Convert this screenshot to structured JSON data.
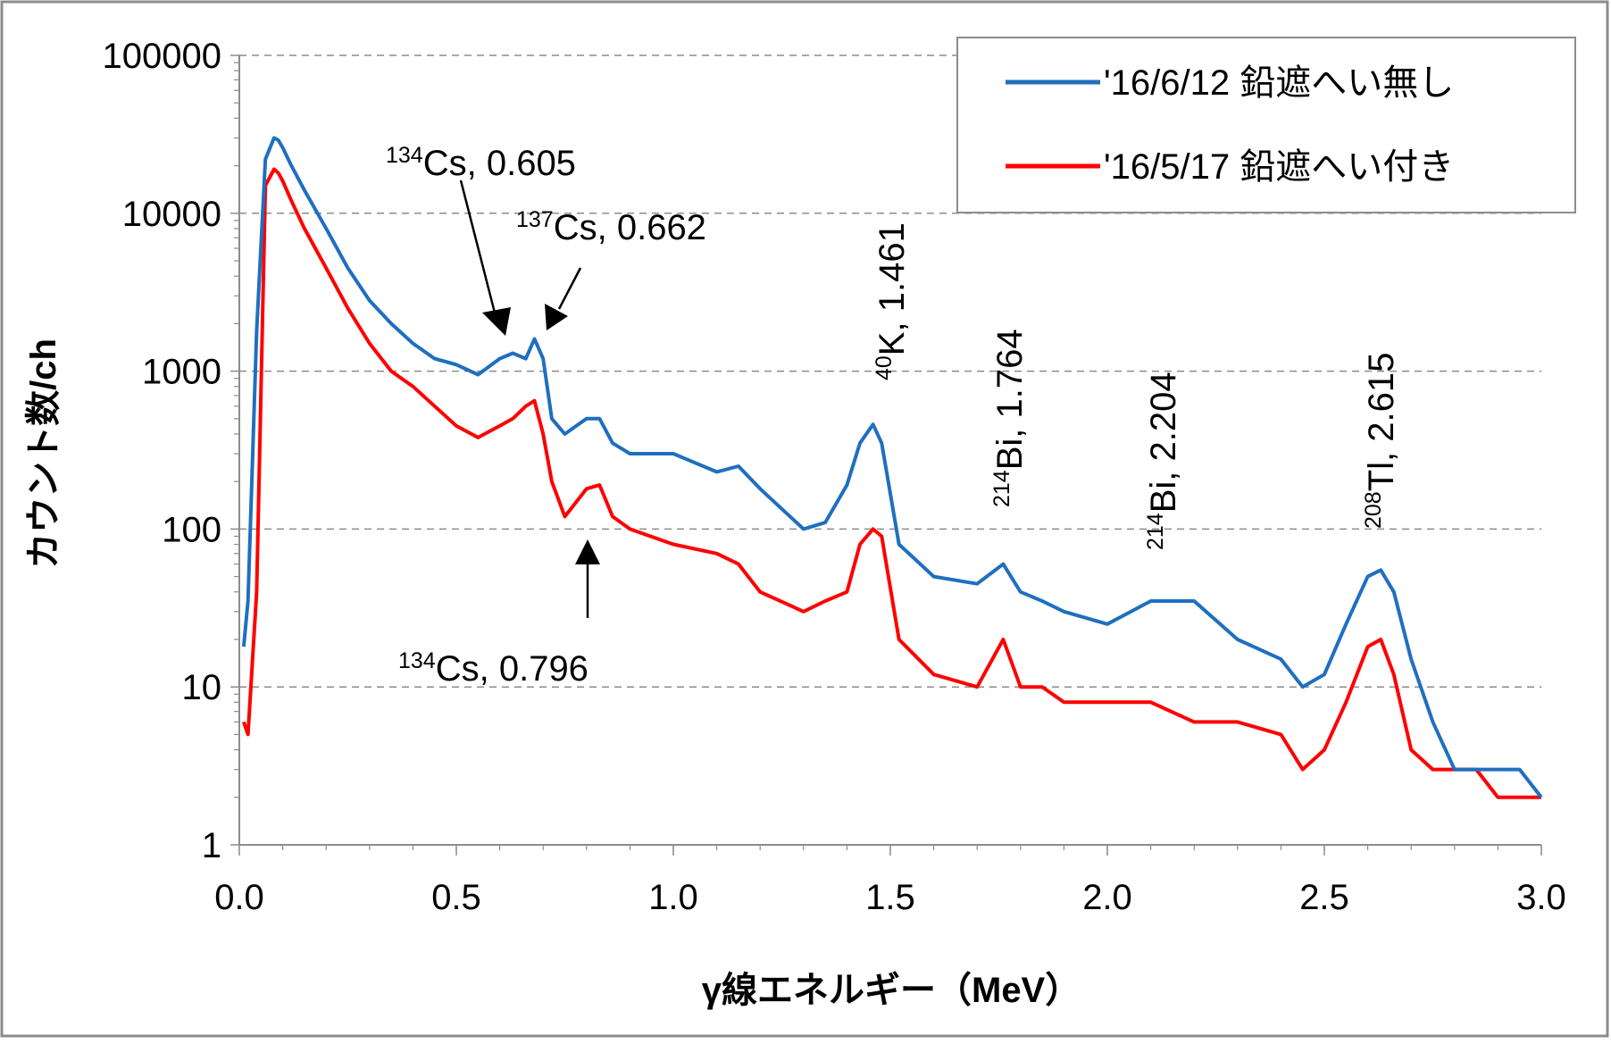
{
  "chart_data": {
    "type": "line",
    "title": "",
    "xlabel": "γ線エネルギー（MeV）",
    "ylabel": "カウント数/ch",
    "xlim": [
      0,
      3
    ],
    "ylim": [
      1,
      100000
    ],
    "yscale": "log",
    "grid": "horizontal dashed at decades",
    "legend_position": "top-right",
    "x_ticks": [
      "0.0",
      "0.5",
      "1.0",
      "1.5",
      "2.0",
      "2.5",
      "3.0"
    ],
    "y_ticks": [
      "1",
      "10",
      "100",
      "1000",
      "10000",
      "100000"
    ],
    "colors": {
      "series1": "#1f6fc0",
      "series2": "#ff0000"
    },
    "series": [
      {
        "name": "'16/6/12 鉛遮へい無し",
        "x": [
          0.01,
          0.02,
          0.04,
          0.06,
          0.08,
          0.09,
          0.1,
          0.12,
          0.15,
          0.2,
          0.25,
          0.3,
          0.35,
          0.4,
          0.45,
          0.5,
          0.55,
          0.6,
          0.63,
          0.66,
          0.68,
          0.7,
          0.72,
          0.75,
          0.8,
          0.83,
          0.86,
          0.9,
          1.0,
          1.1,
          1.15,
          1.2,
          1.3,
          1.35,
          1.4,
          1.43,
          1.46,
          1.48,
          1.52,
          1.6,
          1.7,
          1.76,
          1.8,
          1.85,
          1.9,
          2.0,
          2.1,
          2.2,
          2.3,
          2.4,
          2.45,
          2.5,
          2.55,
          2.6,
          2.63,
          2.66,
          2.7,
          2.75,
          2.8,
          2.85,
          2.9,
          2.95,
          3.0
        ],
        "y": [
          18,
          35,
          1800,
          22000,
          30000,
          29000,
          26000,
          20000,
          14000,
          8000,
          4500,
          2800,
          2000,
          1500,
          1200,
          1100,
          950,
          1200,
          1300,
          1200,
          1600,
          1200,
          500,
          400,
          500,
          500,
          350,
          300,
          300,
          230,
          250,
          180,
          100,
          110,
          190,
          350,
          460,
          350,
          80,
          50,
          45,
          60,
          40,
          35,
          30,
          25,
          35,
          35,
          20,
          15,
          10,
          12,
          25,
          50,
          55,
          40,
          15,
          6,
          3,
          3,
          3,
          3,
          2
        ]
      },
      {
        "name": "'16/5/17 鉛遮へい付き",
        "x": [
          0.01,
          0.02,
          0.04,
          0.06,
          0.08,
          0.09,
          0.1,
          0.12,
          0.15,
          0.2,
          0.25,
          0.3,
          0.35,
          0.4,
          0.45,
          0.5,
          0.55,
          0.6,
          0.63,
          0.66,
          0.68,
          0.7,
          0.72,
          0.75,
          0.8,
          0.83,
          0.86,
          0.9,
          1.0,
          1.1,
          1.15,
          1.2,
          1.3,
          1.35,
          1.4,
          1.43,
          1.46,
          1.48,
          1.52,
          1.6,
          1.7,
          1.76,
          1.8,
          1.85,
          1.9,
          2.0,
          2.1,
          2.2,
          2.3,
          2.4,
          2.45,
          2.5,
          2.55,
          2.6,
          2.63,
          2.66,
          2.7,
          2.75,
          2.8,
          2.85,
          2.9,
          2.95,
          3.0
        ],
        "y": [
          6,
          5,
          40,
          15000,
          19000,
          18000,
          16000,
          12000,
          8000,
          4500,
          2500,
          1500,
          1000,
          800,
          600,
          450,
          380,
          450,
          500,
          600,
          650,
          400,
          200,
          120,
          180,
          190,
          120,
          100,
          80,
          70,
          60,
          40,
          30,
          35,
          40,
          80,
          100,
          90,
          20,
          12,
          10,
          20,
          10,
          10,
          8,
          8,
          8,
          6,
          6,
          5,
          3,
          4,
          8,
          18,
          20,
          12,
          4,
          3,
          3,
          3,
          2,
          2,
          2
        ]
      }
    ],
    "annotations": [
      {
        "sup": "134",
        "text": "Cs, 0.605"
      },
      {
        "sup": "137",
        "text": "Cs, 0.662"
      },
      {
        "sup": "134",
        "text": "Cs, 0.796"
      },
      {
        "sup": "40",
        "text": "K, 1.461"
      },
      {
        "sup": "214",
        "text": "Bi, 1.764"
      },
      {
        "sup": "214",
        "text": "Bi, 2.204"
      },
      {
        "sup": "208",
        "text": "Tl, 2.615"
      }
    ]
  }
}
